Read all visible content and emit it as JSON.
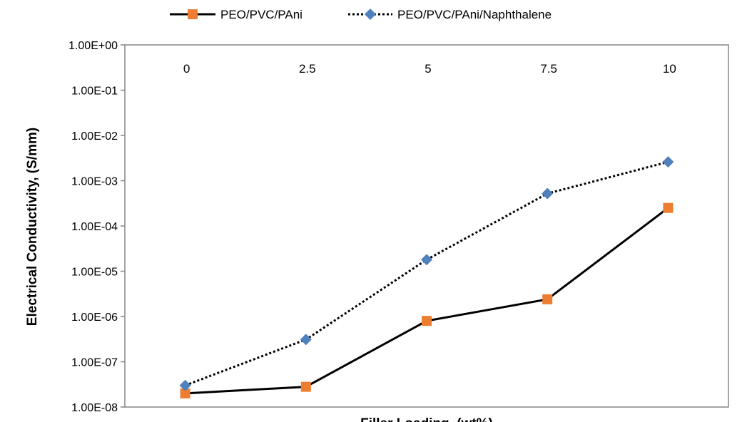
{
  "chart_data": {
    "type": "line",
    "xlabel": "Filler Loading, (wt%)",
    "ylabel": "Electrical Conductivity, (S/mm)",
    "y_scale": "log",
    "ylim": [
      1e-08,
      1
    ],
    "y_ticks": [
      "1.00E+00",
      "1.00E-01",
      "1.00E-02",
      "1.00E-03",
      "1.00E-04",
      "1.00E-05",
      "1.00E-06",
      "1.00E-07",
      "1.00E-08"
    ],
    "x_position": "top-inside",
    "legend_position": "top",
    "grid": false,
    "categories": [
      "0",
      "2.5",
      "5",
      "7.5",
      "10"
    ],
    "series": [
      {
        "name": "PEO/PVC/PAni",
        "values": [
          2e-08,
          2.8e-08,
          8e-07,
          2.4e-06,
          0.00025
        ],
        "color": "#ED7D31",
        "line_color": "#000000",
        "line_style": "solid",
        "marker": "square"
      },
      {
        "name": "PEO/PVC/PAni/Naphthalene",
        "values": [
          3e-08,
          3.1e-07,
          1.8e-05,
          0.00052,
          0.0026
        ],
        "color": "#4F81BD",
        "line_color": "#000000",
        "line_style": "dotted",
        "marker": "diamond"
      }
    ]
  }
}
